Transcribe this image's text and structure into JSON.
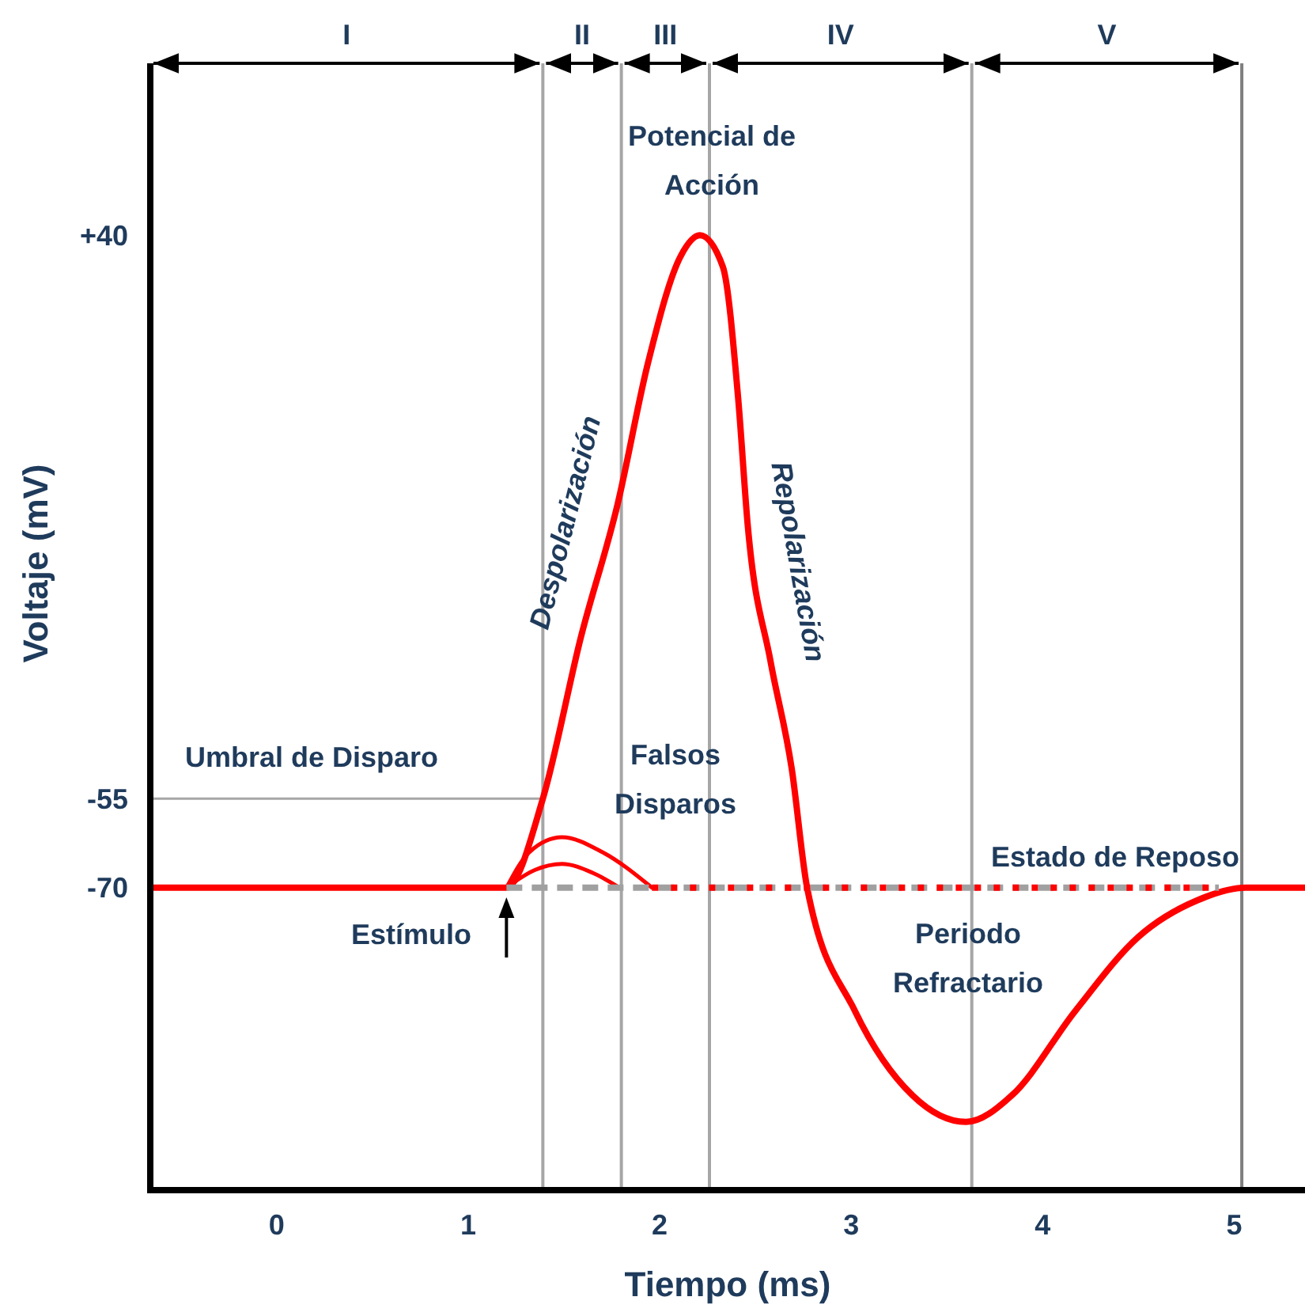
{
  "chart_data": {
    "type": "line",
    "xlabel": "Tiempo (ms)",
    "ylabel": "Voltaje (mV)",
    "xlim": [
      -0.66,
      5.37
    ],
    "ylim": [
      -121,
      69
    ],
    "xticks": [
      0,
      1,
      2,
      3,
      4,
      5
    ],
    "yticks": [
      {
        "value": 40,
        "label": "+40"
      },
      -55,
      -70
    ],
    "grid": false,
    "marker": "none",
    "series": [
      {
        "color": "#ff0000",
        "line_style": "solid",
        "x": [
          -0.66,
          1.2,
          1.39,
          1.59,
          1.78,
          1.94,
          2.11,
          2.21,
          2.33,
          2.41,
          2.46,
          2.58,
          2.69,
          2.77,
          3.02,
          3.32,
          3.6,
          3.84,
          4.17,
          4.5,
          4.81,
          5.06,
          5.37
        ],
        "values": [
          -70,
          -70,
          -55,
          -27.6,
          -5.4,
          18.6,
          36.5,
          40,
          34.7,
          12.5,
          -8.9,
          -32,
          -50,
          -70,
          -90.8,
          -105,
          -109.5,
          -105,
          -90.8,
          -78.3,
          -72.1,
          -70,
          -70
        ]
      },
      {
        "color": "#ff0000",
        "line_style": "solid",
        "x": [
          1.2,
          1.32,
          1.49,
          1.7,
          1.96
        ],
        "values": [
          -70,
          -64,
          -61.5,
          -64,
          -70
        ]
      },
      {
        "color": "#ff0000",
        "line_style": "solid",
        "x": [
          1.2,
          1.35,
          1.49,
          1.65,
          1.79
        ],
        "values": [
          -70,
          -67,
          -66,
          -67.5,
          -70
        ]
      },
      {
        "color": "#a0a0a0",
        "line_style": "dashed",
        "x": [
          1.2,
          4.92
        ],
        "values": [
          -70,
          -70
        ]
      },
      {
        "color": "#ff0000",
        "line_style": "dotted",
        "x": [
          1.96,
          4.92
        ],
        "values": [
          -70,
          -70
        ]
      }
    ],
    "ref_lines": [
      {
        "axis": "x",
        "value": 1.39,
        "color": "#a6a6a6"
      },
      {
        "axis": "x",
        "value": 1.8,
        "color": "#a6a6a6"
      },
      {
        "axis": "x",
        "value": 2.26,
        "color": "#a6a6a6"
      },
      {
        "axis": "x",
        "value": 3.63,
        "color": "#a6a6a6"
      },
      {
        "axis": "x",
        "value": 5.04,
        "color": "#7f7f7f"
      },
      {
        "axis": "y",
        "value": -55,
        "label": "Umbral de Disparo",
        "color": "#a6a6a6"
      }
    ],
    "annotations": [
      "I",
      "II",
      "III",
      "IV",
      "V",
      "Potencial de Acción",
      "Despolarización",
      "Repolarización",
      "Falsos Disparos",
      "Estado de Reposo",
      "Estímulo",
      "Periodo Refractario"
    ]
  }
}
